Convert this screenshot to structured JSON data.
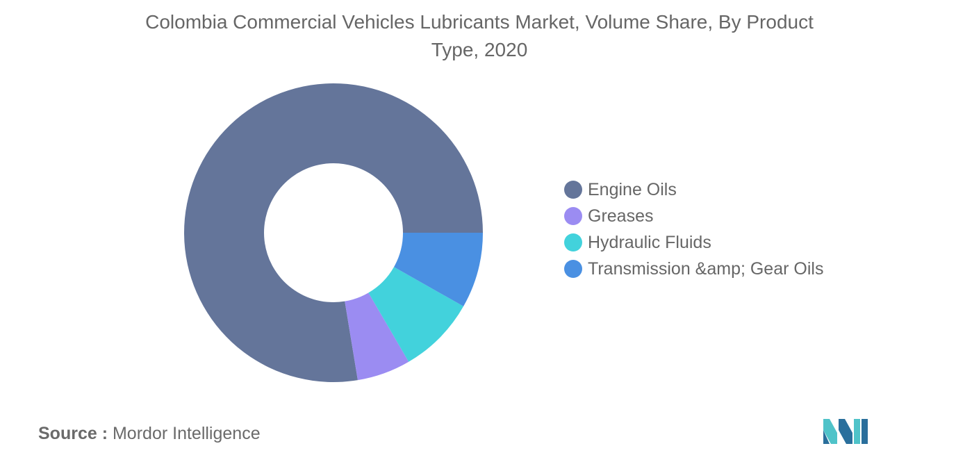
{
  "title": "Colombia Commercial Vehicles Lubricants Market, Volume Share, By Product Type, 2020",
  "source": {
    "label": "Source :",
    "text": "Mordor Intelligence"
  },
  "logo_icon": "mordor-intelligence-logo-icon",
  "chart_data": {
    "type": "pie",
    "style": "donut",
    "title": "Colombia Commercial Vehicles Lubricants Market, Volume Share, By Product Type, 2020",
    "legend_position": "right",
    "series": [
      {
        "name": "Engine Oils",
        "value": 77.6,
        "color": "#64759a"
      },
      {
        "name": "Greases",
        "value": 5.8,
        "color": "#9b8cf2"
      },
      {
        "name": "Hydraulic Fluids",
        "value": 8.4,
        "color": "#42d2dc"
      },
      {
        "name": "Transmission &amp; Gear Oils",
        "value": 8.2,
        "color": "#4a90e2"
      }
    ]
  }
}
